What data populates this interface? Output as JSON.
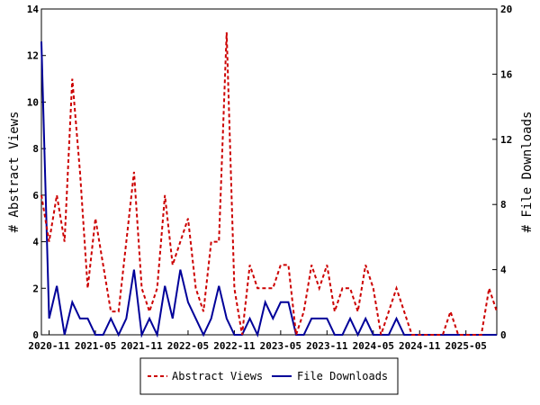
{
  "chart_data": {
    "type": "line",
    "title": "",
    "ylabel_left": "# Abstract Views",
    "ylabel_right": "# File Downloads",
    "ylim_left": [
      0,
      14
    ],
    "ylim_right": [
      0,
      20
    ],
    "yticks_left": [
      "0",
      "2",
      "4",
      "6",
      "8",
      "10",
      "12",
      "14"
    ],
    "yticks_right": [
      "0",
      "4",
      "8",
      "12",
      "16",
      "20"
    ],
    "x_start": "2020-10",
    "x_end": "2025-09",
    "x": [
      "2020-10",
      "2020-11",
      "2020-12",
      "2021-01",
      "2021-02",
      "2021-03",
      "2021-04",
      "2021-05",
      "2021-06",
      "2021-07",
      "2021-08",
      "2021-09",
      "2021-10",
      "2021-11",
      "2021-12",
      "2022-01",
      "2022-02",
      "2022-03",
      "2022-04",
      "2022-05",
      "2022-06",
      "2022-07",
      "2022-08",
      "2022-09",
      "2022-10",
      "2022-11",
      "2022-12",
      "2023-01",
      "2023-02",
      "2023-03",
      "2023-04",
      "2023-05",
      "2023-06",
      "2023-07",
      "2023-08",
      "2023-09",
      "2023-10",
      "2023-11",
      "2023-12",
      "2024-01",
      "2024-02",
      "2024-03",
      "2024-04",
      "2024-05",
      "2024-06",
      "2024-07",
      "2024-08",
      "2024-09",
      "2024-10",
      "2024-11",
      "2024-12",
      "2025-01",
      "2025-02",
      "2025-03",
      "2025-04",
      "2025-05",
      "2025-06",
      "2025-07",
      "2025-08",
      "2025-09"
    ],
    "xticks": [
      "2020-11",
      "2021-05",
      "2021-11",
      "2022-05",
      "2022-11",
      "2023-05",
      "2023-11",
      "2024-05",
      "2024-11",
      "2025-05"
    ],
    "series": [
      {
        "name": "Abstract Views",
        "axis": "left",
        "color": "#cc0000",
        "dash": true,
        "values": [
          6,
          4,
          6,
          4,
          11,
          7,
          2,
          5,
          3,
          1,
          1,
          4,
          7,
          2,
          1,
          2,
          6,
          3,
          4,
          5,
          2,
          1,
          4,
          4,
          13,
          2,
          0,
          3,
          2,
          2,
          2,
          3,
          3,
          0,
          1,
          3,
          2,
          3,
          1,
          2,
          2,
          1,
          3,
          2,
          0,
          1,
          2,
          1,
          0,
          0,
          0,
          0,
          0,
          1,
          0,
          0,
          0,
          0,
          2,
          1
        ]
      },
      {
        "name": "File Downloads",
        "axis": "right",
        "color": "#000099",
        "dash": false,
        "values": [
          18,
          1,
          3,
          0,
          2,
          1,
          1,
          0,
          0,
          1,
          0,
          1,
          4,
          0,
          1,
          0,
          3,
          1,
          4,
          2,
          1,
          0,
          1,
          3,
          1,
          0,
          0,
          1,
          0,
          2,
          1,
          2,
          2,
          0,
          0,
          1,
          1,
          1,
          0,
          0,
          1,
          0,
          1,
          0,
          0,
          0,
          1,
          0,
          0,
          0,
          0,
          0,
          0,
          0,
          0,
          0,
          0,
          0,
          0,
          0
        ]
      }
    ],
    "legend_position": "bottom"
  }
}
